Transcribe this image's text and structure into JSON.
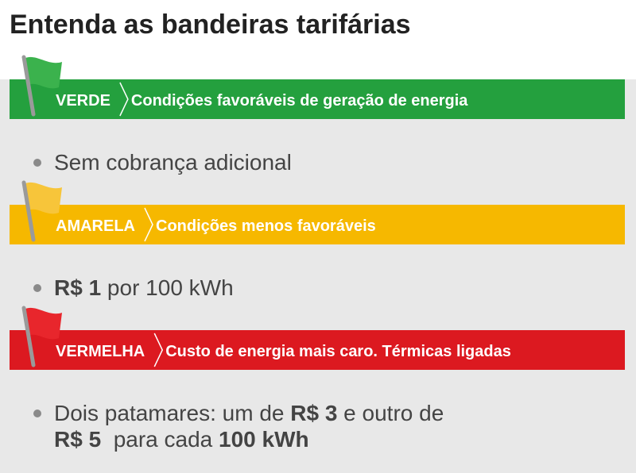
{
  "header": {
    "title": "Entenda as bandeiras tarifárias"
  },
  "sections": [
    {
      "label": "VERDE",
      "description": "Condições favoráveis de geração de energia",
      "color": "#24a03e",
      "flag_color": "#3bb24d",
      "bullet": [
        [
          {
            "text": "Sem cobrança adicional",
            "bold": false
          }
        ]
      ]
    },
    {
      "label": "AMARELA",
      "description": "Condições menos favoráveis",
      "color": "#f6b800",
      "flag_color": "#f7c53a",
      "bullet": [
        [
          {
            "text": "R$ 1",
            "bold": true
          },
          {
            "text": " por 100 kWh",
            "bold": false
          }
        ]
      ]
    },
    {
      "label": "VERMELHA",
      "description": "Custo de energia mais caro. Térmicas ligadas",
      "color": "#dc1920",
      "flag_color": "#e8262c",
      "bullet": [
        [
          {
            "text": "Dois patamares: um de ",
            "bold": false
          },
          {
            "text": "R$ 3",
            "bold": true
          },
          {
            "text": " e outro de",
            "bold": false
          }
        ],
        [
          {
            "text": "R$ 5",
            "bold": true
          },
          {
            "text": "  para cada ",
            "bold": false
          },
          {
            "text": "100 kWh",
            "bold": true
          }
        ]
      ]
    }
  ]
}
